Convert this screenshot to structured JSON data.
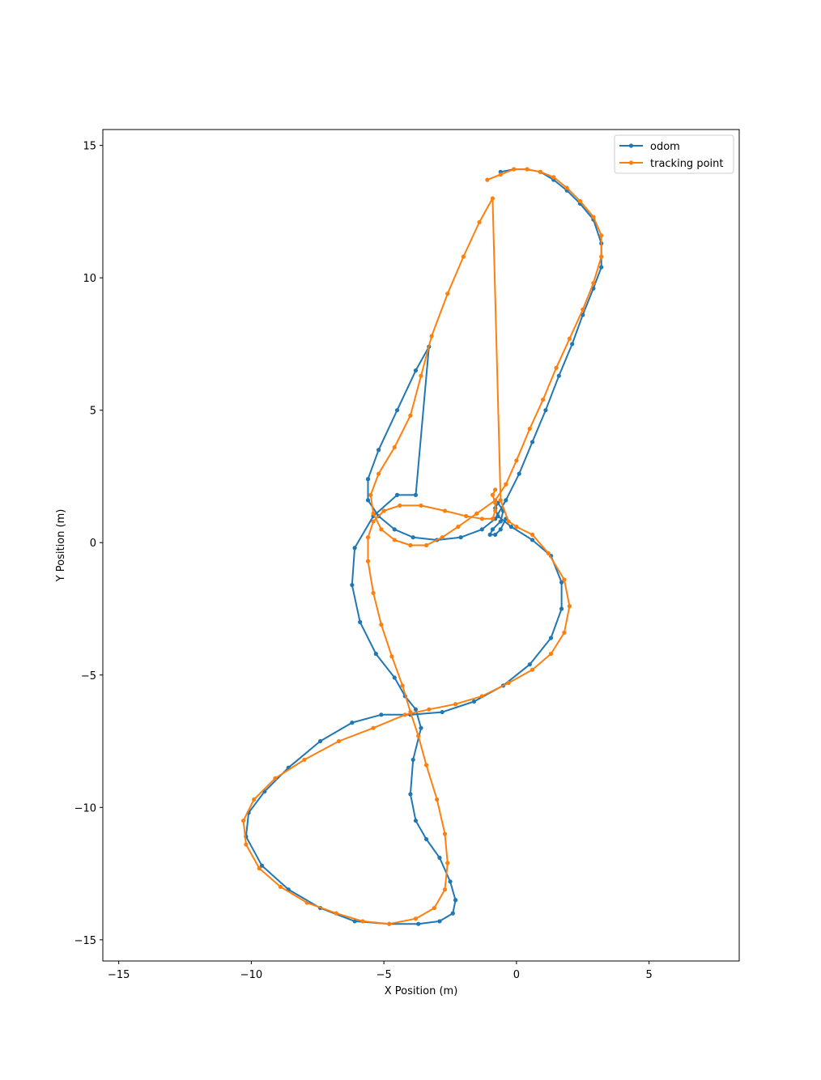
{
  "chart_data": {
    "type": "line",
    "title": "",
    "xlabel": "X Position (m)",
    "ylabel": "Y Position (m)",
    "xlim": [
      -15.6,
      8.4
    ],
    "ylim": [
      -15.8,
      15.6
    ],
    "xticks": [
      -15,
      -10,
      -5,
      0,
      5
    ],
    "xtick_labels": [
      "−15",
      "−10",
      "−5",
      "0",
      "5"
    ],
    "yticks": [
      -15,
      -10,
      -5,
      0,
      5,
      10,
      15
    ],
    "ytick_labels": [
      "−15",
      "−10",
      "−5",
      "0",
      "5",
      "10",
      "15"
    ],
    "grid": false,
    "legend_position": "top-right",
    "series": [
      {
        "name": "odom",
        "color": "#1f77b4",
        "marker": "circle",
        "x": [
          -0.6,
          -0.1,
          0.4,
          0.9,
          1.4,
          1.9,
          2.4,
          2.9,
          3.2,
          3.2,
          2.9,
          2.5,
          2.1,
          1.6,
          1.1,
          0.6,
          0.1,
          -0.4,
          -0.8,
          -1.3,
          -2.1,
          -3.0,
          -3.9,
          -4.6,
          -5.2,
          -5.6,
          -5.6,
          -5.2,
          -4.5,
          -3.8,
          -3.3,
          -3.8,
          -4.5,
          -5.4,
          -6.1,
          -6.2,
          -5.9,
          -5.3,
          -4.6,
          -4.2,
          -3.8,
          -3.6,
          -3.9,
          -4.0,
          -3.8,
          -3.4,
          -2.9,
          -2.5,
          -2.3,
          -2.4,
          -2.9,
          -3.7,
          -4.8,
          -6.1,
          -7.4,
          -8.6,
          -9.6,
          -10.2,
          -10.1,
          -9.5,
          -8.6,
          -7.4,
          -6.2,
          -5.1,
          -4.0,
          -2.8,
          -1.6,
          -0.5,
          0.5,
          1.3,
          1.7,
          1.7,
          1.3,
          0.6,
          -0.2,
          -0.7,
          -0.8,
          -0.7,
          -0.5,
          -0.6,
          -0.9,
          -1.0,
          -0.8,
          -0.6,
          -0.4
        ],
        "y": [
          14.0,
          14.1,
          14.1,
          14.0,
          13.7,
          13.3,
          12.8,
          12.2,
          11.3,
          10.4,
          9.6,
          8.6,
          7.5,
          6.3,
          5.0,
          3.8,
          2.6,
          1.6,
          0.9,
          0.5,
          0.2,
          0.1,
          0.2,
          0.5,
          1.0,
          1.6,
          2.4,
          3.5,
          5.0,
          6.5,
          7.4,
          1.8,
          1.8,
          1.0,
          -0.2,
          -1.6,
          -3.0,
          -4.2,
          -5.1,
          -5.8,
          -6.3,
          -7.0,
          -8.2,
          -9.5,
          -10.5,
          -11.2,
          -11.9,
          -12.8,
          -13.5,
          -14.0,
          -14.3,
          -14.4,
          -14.4,
          -14.3,
          -13.8,
          -13.1,
          -12.2,
          -11.1,
          -10.2,
          -9.4,
          -8.5,
          -7.5,
          -6.8,
          -6.5,
          -6.5,
          -6.4,
          -6.0,
          -5.4,
          -4.6,
          -3.6,
          -2.5,
          -1.5,
          -0.5,
          0.1,
          0.6,
          1.0,
          1.3,
          1.5,
          1.2,
          0.8,
          0.5,
          0.3,
          0.3,
          0.5,
          0.9
        ]
      },
      {
        "name": "tracking point",
        "color": "#ff7f0e",
        "marker": "circle",
        "x": [
          -1.1,
          -0.6,
          -0.1,
          0.4,
          0.9,
          1.4,
          1.9,
          2.4,
          2.9,
          3.2,
          3.2,
          2.9,
          2.5,
          2.0,
          1.5,
          1.0,
          0.5,
          0.0,
          -0.4,
          -0.8,
          -1.5,
          -2.2,
          -2.8,
          -3.4,
          -4.0,
          -4.6,
          -5.1,
          -5.4,
          -5.5,
          -5.2,
          -4.6,
          -4.0,
          -3.6,
          -3.2,
          -2.6,
          -2.0,
          -1.4,
          -0.9,
          -0.6,
          -0.3,
          0.0,
          0.6,
          1.2,
          1.8,
          2.0,
          1.8,
          1.3,
          0.6,
          -0.3,
          -1.3,
          -2.3,
          -3.3,
          -4.2,
          -5.4,
          -6.7,
          -8.0,
          -9.1,
          -9.9,
          -10.3,
          -10.2,
          -9.7,
          -8.9,
          -7.9,
          -6.8,
          -5.8,
          -4.8,
          -3.8,
          -3.1,
          -2.7,
          -2.6,
          -2.7,
          -3.0,
          -3.4,
          -3.7,
          -4.0,
          -4.3,
          -4.7,
          -5.1,
          -5.4,
          -5.6,
          -5.6,
          -5.4,
          -5.0,
          -4.4,
          -3.6,
          -2.7,
          -1.9,
          -1.3,
          -0.9,
          -0.8,
          -0.8,
          -0.9,
          -0.8
        ],
        "y": [
          13.7,
          13.9,
          14.1,
          14.1,
          14.0,
          13.8,
          13.4,
          12.9,
          12.3,
          11.6,
          10.8,
          9.8,
          8.8,
          7.7,
          6.6,
          5.4,
          4.3,
          3.1,
          2.2,
          1.6,
          1.1,
          0.6,
          0.2,
          -0.1,
          -0.1,
          0.1,
          0.5,
          1.1,
          1.8,
          2.6,
          3.6,
          4.8,
          6.3,
          7.8,
          9.4,
          10.8,
          12.1,
          13.0,
          1.6,
          0.8,
          0.6,
          0.3,
          -0.4,
          -1.4,
          -2.4,
          -3.4,
          -4.2,
          -4.8,
          -5.3,
          -5.8,
          -6.1,
          -6.3,
          -6.5,
          -7.0,
          -7.5,
          -8.2,
          -8.9,
          -9.7,
          -10.5,
          -11.4,
          -12.3,
          -13.0,
          -13.6,
          -14.0,
          -14.3,
          -14.4,
          -14.2,
          -13.8,
          -13.1,
          -12.1,
          -11.0,
          -9.7,
          -8.4,
          -7.3,
          -6.4,
          -5.4,
          -4.3,
          -3.1,
          -1.9,
          -0.7,
          0.2,
          0.8,
          1.2,
          1.4,
          1.4,
          1.2,
          1.0,
          0.9,
          0.9,
          1.2,
          1.5,
          1.8,
          2.0
        ]
      }
    ]
  }
}
